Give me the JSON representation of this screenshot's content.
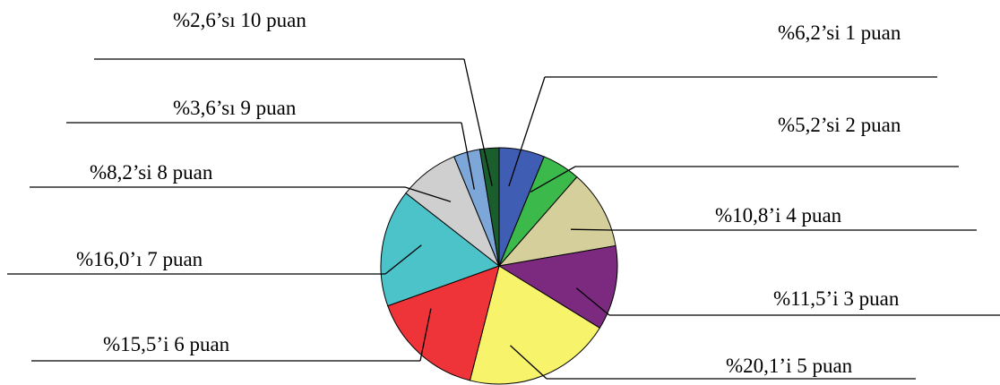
{
  "chart_data": {
    "type": "pie",
    "title": "",
    "slices": [
      {
        "label": "%6,2’si 1 puan",
        "value": 6.2,
        "color": "#3f5db3"
      },
      {
        "label": "%5,2’si 2 puan",
        "value": 5.2,
        "color": "#3cb94b"
      },
      {
        "label": "%10,8’i 4 puan",
        "value": 10.8,
        "color": "#d4cf9b"
      },
      {
        "label": "%11,5’i 3 puan",
        "value": 11.5,
        "color": "#7b2a80"
      },
      {
        "label": "%20,1’i 5 puan",
        "value": 20.1,
        "color": "#f7f36a"
      },
      {
        "label": "%15,5’i 6 puan",
        "value": 15.5,
        "color": "#ee3339"
      },
      {
        "label": "%16,0’ı 7 puan",
        "value": 16.0,
        "color": "#4cc2c9"
      },
      {
        "label": "%8,2’si 8 puan",
        "value": 8.2,
        "color": "#cfcfcf"
      },
      {
        "label": "%3,6’sı 9 puan",
        "value": 3.6,
        "color": "#7da7d8"
      },
      {
        "label": "%2,6’sı 10 puan",
        "value": 2.6,
        "color": "#1b5e2e"
      }
    ],
    "start": "12 o'clock",
    "direction": "clockwise",
    "legend": "none"
  }
}
